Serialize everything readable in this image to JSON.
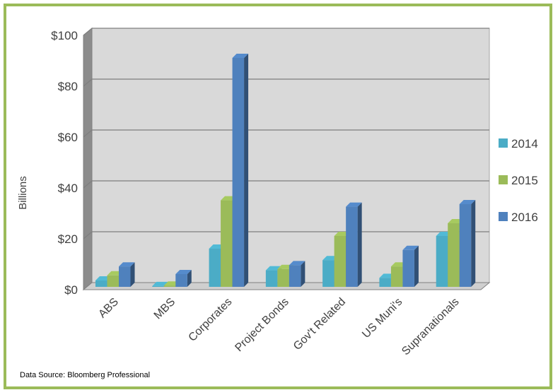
{
  "chart_data": {
    "type": "bar",
    "title": "",
    "xlabel": "",
    "ylabel": "Billions",
    "ylim": [
      0,
      100
    ],
    "yticks": [
      0,
      20,
      40,
      60,
      80,
      100
    ],
    "ytick_labels": [
      "$0",
      "$20",
      "$40",
      "$60",
      "$80",
      "$100"
    ],
    "categories": [
      "ABS",
      "MBS",
      "Corporates",
      "Project Bonds",
      "Gov't Related",
      "US Muni's",
      "Supranationals"
    ],
    "series": [
      {
        "name": "2014",
        "color": "#4bacc6",
        "values": [
          2.5,
          0.3,
          15,
          6.5,
          10.5,
          3.5,
          20
        ]
      },
      {
        "name": "2015",
        "color": "#9bbb59",
        "values": [
          4.5,
          0.5,
          34,
          7,
          20,
          8,
          25
        ]
      },
      {
        "name": "2016",
        "color": "#4f81bd",
        "values": [
          8,
          5,
          90,
          8.5,
          31.5,
          14.5,
          32.5
        ]
      }
    ],
    "grid": true,
    "legend": "right",
    "source_note": "Data Source: Bloomberg Professional"
  }
}
